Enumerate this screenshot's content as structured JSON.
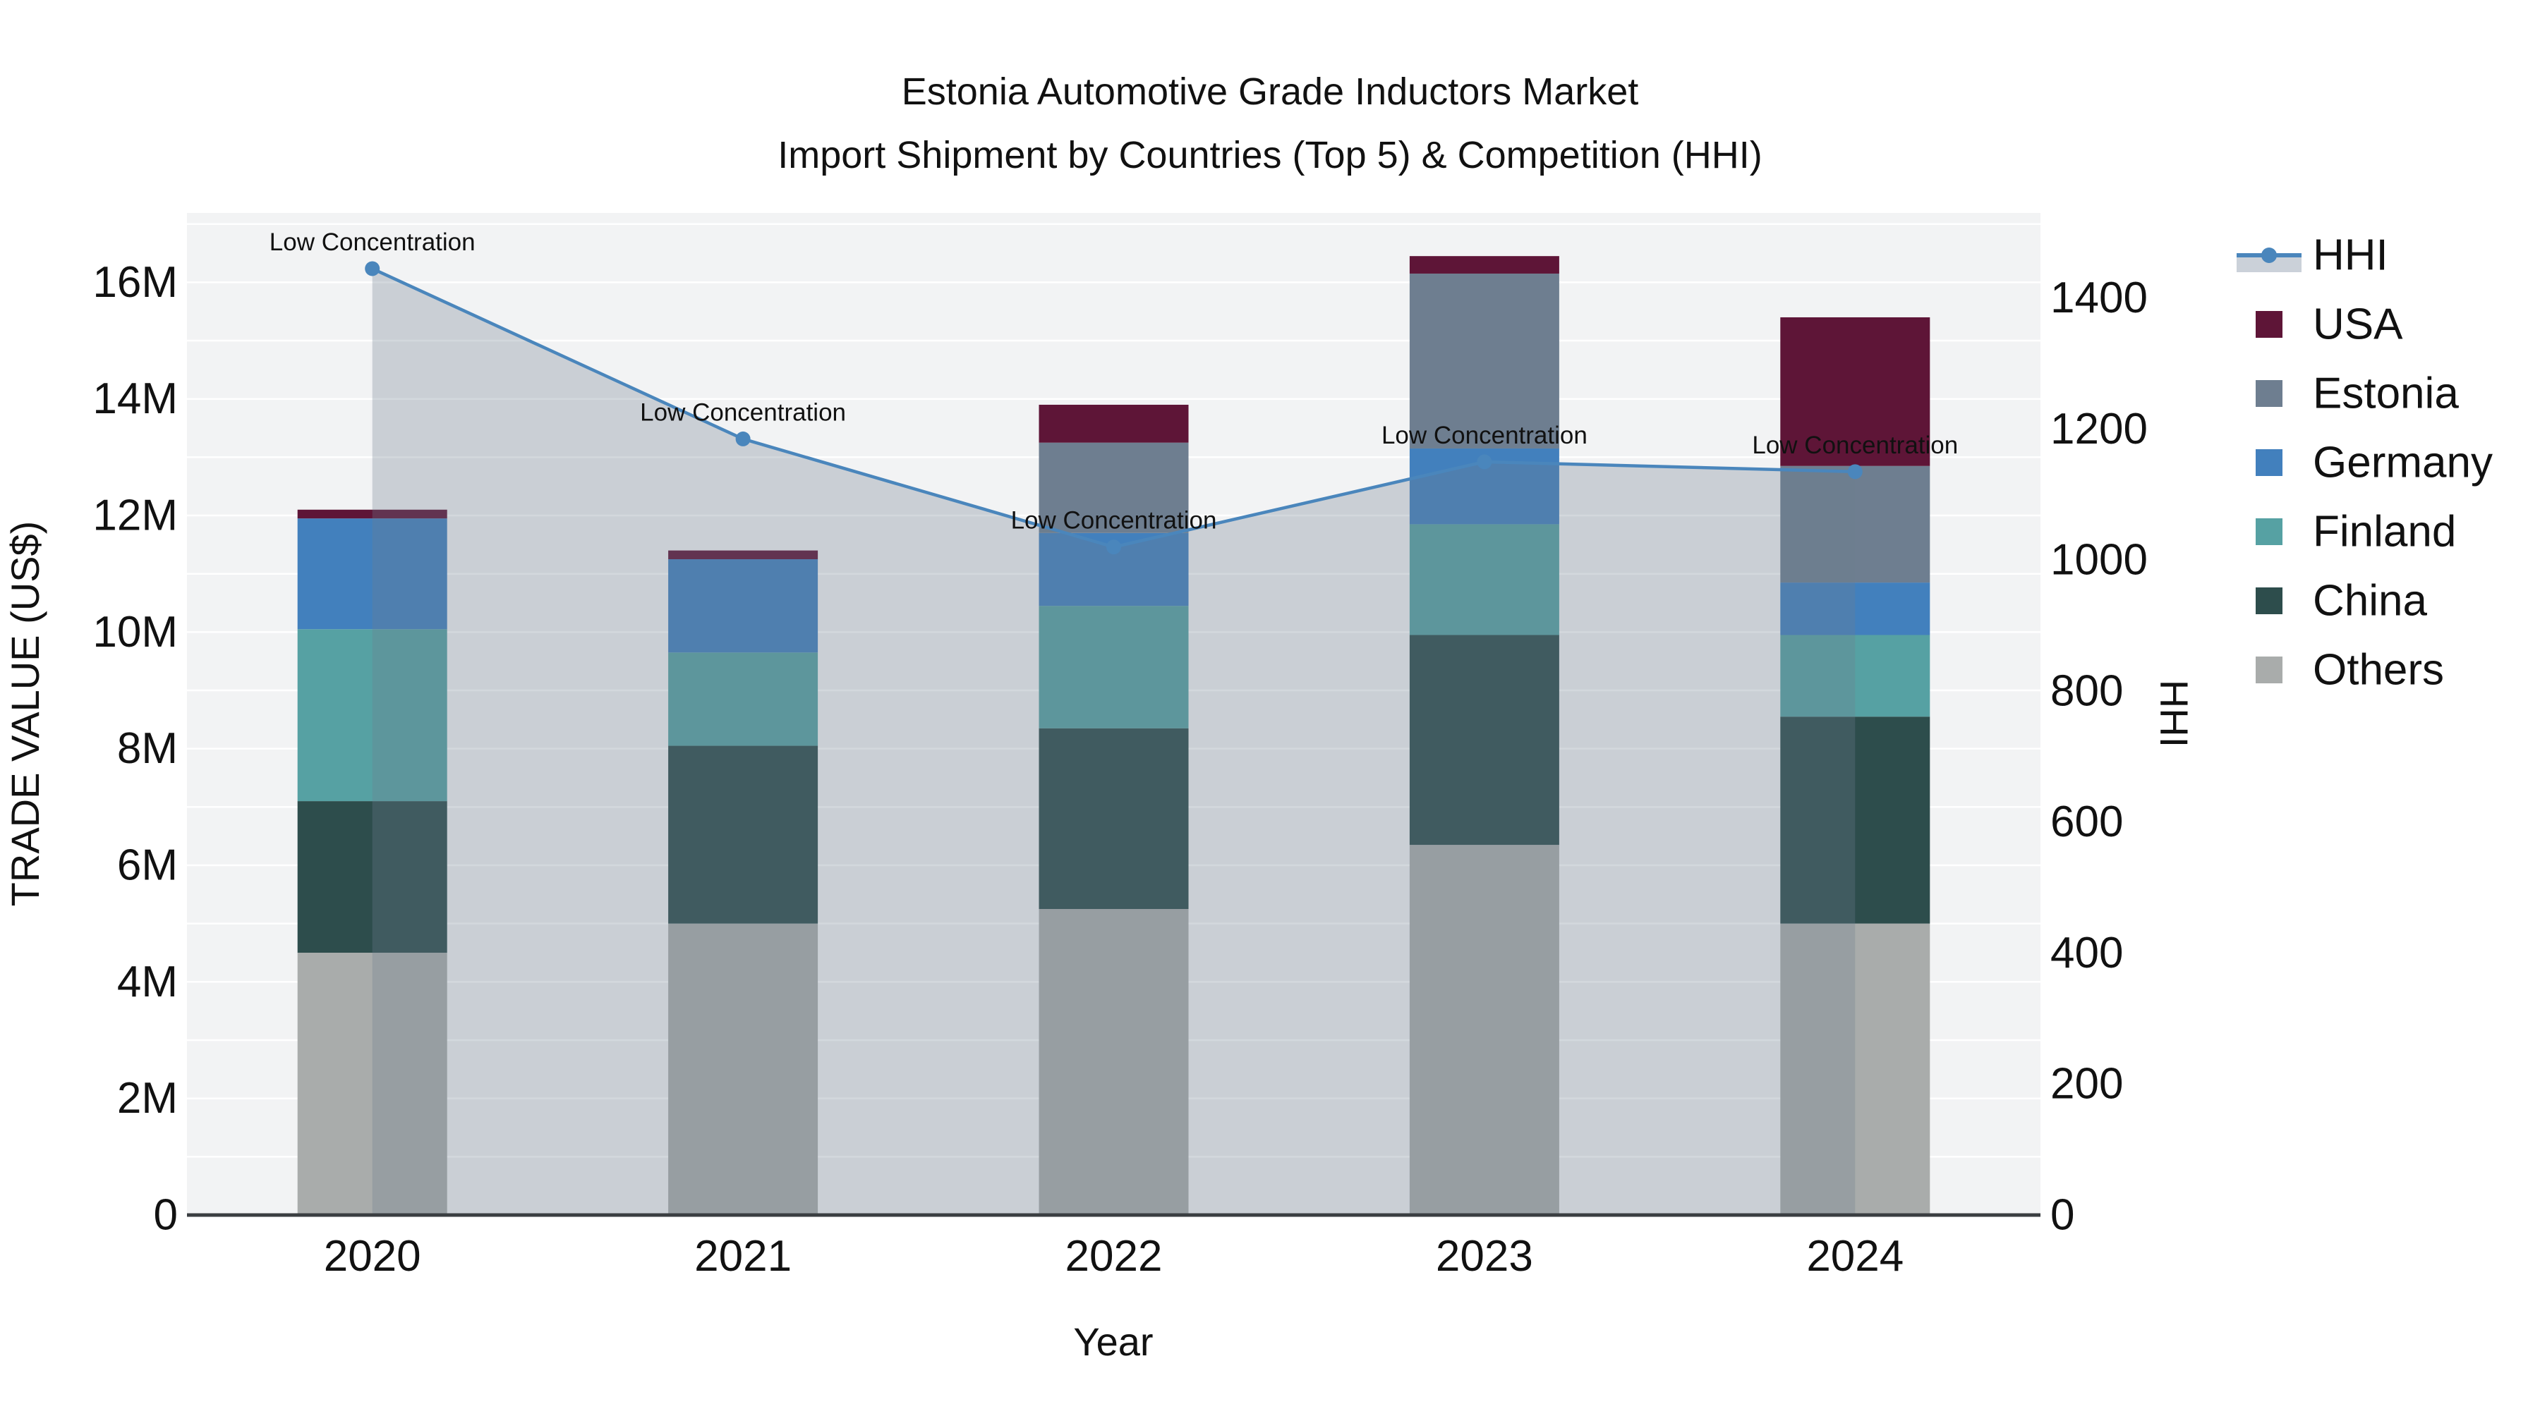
{
  "title": {
    "line1": "Estonia Automotive Grade Inductors Market",
    "line2": "Import Shipment by Countries (Top 5) & Competition (HHI)"
  },
  "axes": {
    "x": {
      "title": "Year",
      "ticks": [
        "2020",
        "2021",
        "2022",
        "2023",
        "2024"
      ]
    },
    "y_left": {
      "title": "TRADE VALUE (US$)",
      "ticks": [
        {
          "label": "0",
          "value": 0
        },
        {
          "label": "2M",
          "value": 2
        },
        {
          "label": "4M",
          "value": 4
        },
        {
          "label": "6M",
          "value": 6
        },
        {
          "label": "8M",
          "value": 8
        },
        {
          "label": "10M",
          "value": 10
        },
        {
          "label": "12M",
          "value": 12
        },
        {
          "label": "14M",
          "value": 14
        },
        {
          "label": "16M",
          "value": 16
        }
      ],
      "range_max": 17.19,
      "gridline_step": 1
    },
    "y_right": {
      "title": "HHI",
      "ticks": [
        {
          "label": "0",
          "value": 0
        },
        {
          "label": "200",
          "value": 200
        },
        {
          "label": "400",
          "value": 400
        },
        {
          "label": "600",
          "value": 600
        },
        {
          "label": "800",
          "value": 800
        },
        {
          "label": "1000",
          "value": 1000
        },
        {
          "label": "1200",
          "value": 1200
        },
        {
          "label": "1400",
          "value": 1400
        }
      ],
      "range_max": 1530
    }
  },
  "legend": [
    {
      "name": "HHI",
      "type": "line",
      "color": "#4A86BC"
    },
    {
      "name": "USA",
      "type": "bar",
      "color": "#5E1537"
    },
    {
      "name": "Estonia",
      "type": "bar",
      "color": "#6E7E90"
    },
    {
      "name": "Germany",
      "type": "bar",
      "color": "#4280BD"
    },
    {
      "name": "Finland",
      "type": "bar",
      "color": "#56A1A3"
    },
    {
      "name": "China",
      "type": "bar",
      "color": "#2D4D4C"
    },
    {
      "name": "Others",
      "type": "bar",
      "color": "#A9ACAB"
    }
  ],
  "annotation_text": "Low Concentration",
  "colors": {
    "plot_bg": "#F2F3F4",
    "gridline": "#FFFFFF",
    "axis_line": "#3A3E41",
    "hhi_line": "#4A86BC",
    "hhi_area_fill": "rgba(110,126,144,0.30)",
    "text": "#111111"
  },
  "chart_data": {
    "type": "bar+line",
    "title": "Estonia Automotive Grade Inductors Market — Import Shipment by Countries (Top 5) & Competition (HHI)",
    "categories": [
      "2020",
      "2021",
      "2022",
      "2023",
      "2024"
    ],
    "bar_unit": "millions USD",
    "stack_order_bottom_to_top": [
      "Others",
      "China",
      "Finland",
      "Germany",
      "Estonia",
      "USA"
    ],
    "series": [
      {
        "name": "Others",
        "color": "#A9ACAB",
        "values": [
          4.5,
          5.0,
          5.25,
          6.35,
          5.0
        ]
      },
      {
        "name": "China",
        "color": "#2D4D4C",
        "values": [
          2.6,
          3.05,
          3.1,
          3.6,
          3.55
        ]
      },
      {
        "name": "Finland",
        "color": "#56A1A3",
        "values": [
          2.95,
          1.6,
          2.1,
          1.9,
          1.4
        ]
      },
      {
        "name": "Germany",
        "color": "#4280BD",
        "values": [
          1.9,
          1.6,
          1.25,
          1.3,
          0.9
        ]
      },
      {
        "name": "Estonia",
        "color": "#6E7E90",
        "values": [
          0.0,
          0.0,
          1.55,
          3.0,
          2.0
        ]
      },
      {
        "name": "USA",
        "color": "#5E1537",
        "values": [
          0.15,
          0.15,
          0.65,
          0.3,
          2.55
        ]
      }
    ],
    "bar_totals": [
      12.1,
      11.4,
      13.9,
      16.45,
      15.4
    ],
    "line_series": {
      "name": "HHI",
      "color": "#4A86BC",
      "values": [
        1445,
        1185,
        1020,
        1150,
        1135
      ],
      "area_fill": true,
      "point_annotations": [
        "Low Concentration",
        "Low Concentration",
        "Low Concentration",
        "Low Concentration",
        "Low Concentration"
      ]
    },
    "xlabel": "Year",
    "ylabel_left": "TRADE VALUE (US$)",
    "ylabel_right": "HHI",
    "ylim_left": [
      0,
      17.19
    ],
    "ylim_right": [
      0,
      1530
    ],
    "grid": true,
    "legend_position": "right"
  }
}
